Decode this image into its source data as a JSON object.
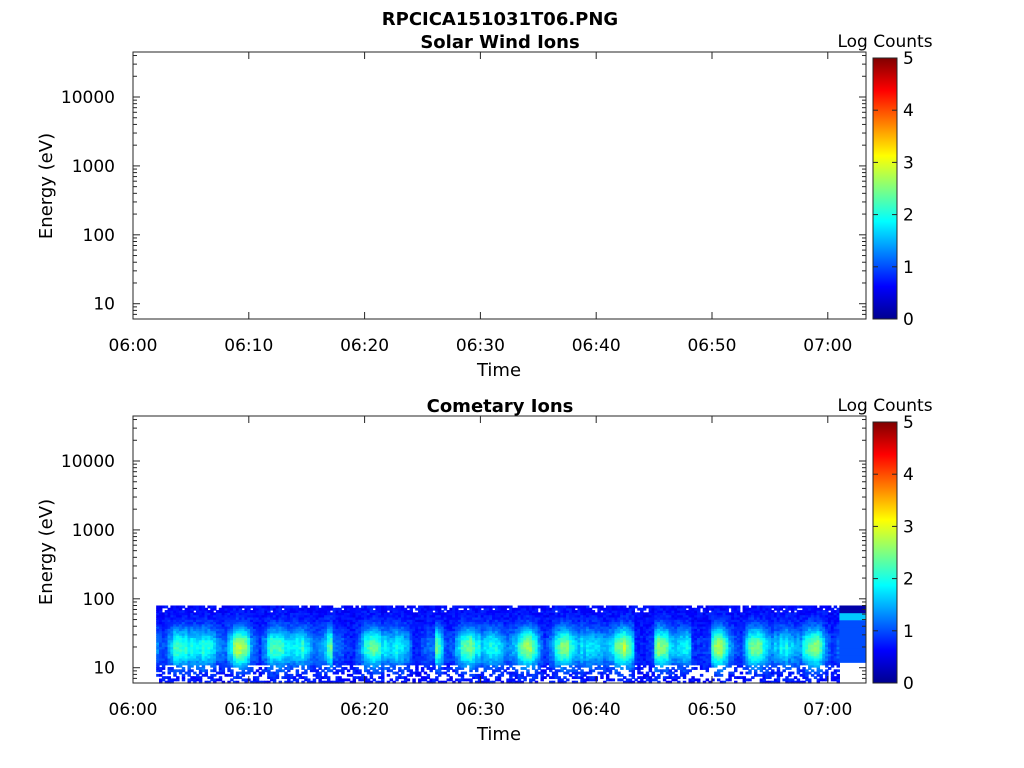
{
  "figure": {
    "title": "RPCICA151031T06.PNG"
  },
  "chart_data": [
    {
      "type": "heatmap",
      "title": "Solar Wind Ions",
      "xlabel": "Time",
      "ylabel": "Energy (eV)",
      "x_ticks": [
        "06:00",
        "06:10",
        "06:20",
        "06:30",
        "06:40",
        "06:50",
        "07:00"
      ],
      "x_range_minutes": [
        0,
        63.3
      ],
      "y_scale": "log",
      "y_ticks": [
        "10",
        "100",
        "1000",
        "10000"
      ],
      "y_range": [
        6,
        45000
      ],
      "colorbar": {
        "label": "Log Counts",
        "ticks": [
          "0",
          "1",
          "2",
          "3",
          "4",
          "5"
        ],
        "range": [
          0,
          5
        ],
        "colormap": "jet"
      },
      "data": "empty"
    },
    {
      "type": "heatmap",
      "title": "Cometary Ions",
      "xlabel": "Time",
      "ylabel": "Energy (eV)",
      "x_ticks": [
        "06:00",
        "06:10",
        "06:20",
        "06:30",
        "06:40",
        "06:50",
        "07:00"
      ],
      "x_range_minutes": [
        0,
        63.3
      ],
      "y_scale": "log",
      "y_ticks": [
        "10",
        "100",
        "1000",
        "10000"
      ],
      "y_range": [
        6,
        45000
      ],
      "colorbar": {
        "label": "Log Counts",
        "ticks": [
          "0",
          "1",
          "2",
          "3",
          "4",
          "5"
        ],
        "range": [
          0,
          5
        ],
        "colormap": "jet"
      },
      "data": {
        "time_start": "06:02",
        "time_end": "07:01",
        "energy_range_eV": [
          6,
          80
        ],
        "peak_energy_eV": 20,
        "peak_log_counts": 2.2,
        "low_count_gaps": [
          "06:18",
          "06:25",
          "06:44",
          "06:49"
        ],
        "after_07:01_level": "constant ~1 between 12 and 80 eV"
      }
    }
  ]
}
